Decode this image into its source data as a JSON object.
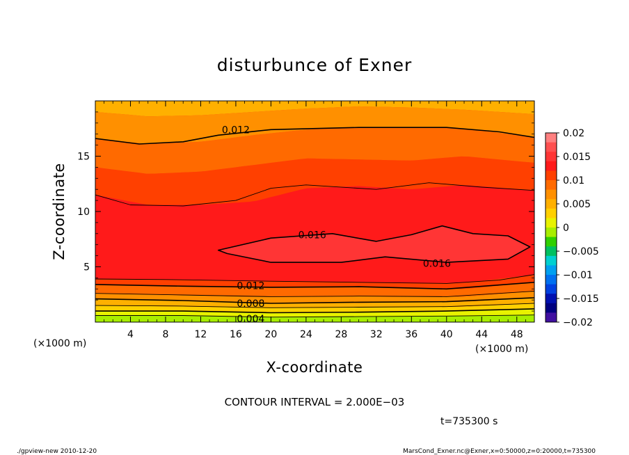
{
  "chart_data": {
    "type": "heatmap",
    "title": "disturbunce of Exner",
    "xlabel": "X-coordinate",
    "ylabel": "Z-coordinate",
    "x_unit": "(×1000 m)",
    "y_unit": "(×1000 m)",
    "xlim": [
      0,
      50
    ],
    "ylim": [
      0,
      20
    ],
    "x_ticks": [
      "4",
      "8",
      "12",
      "16",
      "20",
      "24",
      "28",
      "32",
      "36",
      "40",
      "44",
      "48"
    ],
    "y_ticks": [
      "5",
      "10",
      "15"
    ],
    "x_tick_values": [
      4,
      8,
      12,
      16,
      20,
      24,
      28,
      32,
      36,
      40,
      44,
      48
    ],
    "y_tick_values": [
      5,
      10,
      15
    ],
    "colorbar": {
      "labels": [
        "0.02",
        "0.015",
        "0.01",
        "0.005",
        "0",
        "−0.005",
        "−0.01",
        "−0.015",
        "−0.02"
      ],
      "values": [
        0.02,
        0.015,
        0.01,
        0.005,
        0,
        -0.005,
        -0.01,
        -0.015,
        -0.02
      ]
    },
    "contour_interval": "CONTOUR INTERVAL = 2.000E−03",
    "contour_labels": [
      {
        "text": "0.012",
        "x": 16.0,
        "y": 17.4
      },
      {
        "text": "0.016",
        "x": 24.7,
        "y": 7.9
      },
      {
        "text": "0.016",
        "x": 38.9,
        "y": 5.3
      },
      {
        "text": "0.012",
        "x": 17.7,
        "y": 3.3
      },
      {
        "text": "0.008",
        "x": 17.7,
        "y": 1.7
      },
      {
        "text": "0.004",
        "x": 17.7,
        "y": 0.3
      }
    ],
    "contour_lines": [
      {
        "level": 0.002,
        "points": [
          [
            0,
            0.6
          ],
          [
            10,
            0.6
          ],
          [
            20,
            0.45
          ],
          [
            30,
            0.5
          ],
          [
            40,
            0.55
          ],
          [
            50,
            0.65
          ]
        ]
      },
      {
        "level": 0.004,
        "points": [
          [
            0,
            1.0
          ],
          [
            10,
            1.0
          ],
          [
            20,
            0.85
          ],
          [
            30,
            0.9
          ],
          [
            40,
            1.0
          ],
          [
            50,
            1.2
          ]
        ]
      },
      {
        "level": 0.006,
        "points": [
          [
            0,
            1.5
          ],
          [
            10,
            1.45
          ],
          [
            20,
            1.3
          ],
          [
            30,
            1.35
          ],
          [
            40,
            1.4
          ],
          [
            50,
            1.7
          ]
        ]
      },
      {
        "level": 0.008,
        "points": [
          [
            0,
            2.1
          ],
          [
            10,
            1.95
          ],
          [
            20,
            1.7
          ],
          [
            30,
            1.8
          ],
          [
            40,
            1.85
          ],
          [
            50,
            2.2
          ]
        ]
      },
      {
        "level": 0.01,
        "points": [
          [
            0,
            2.6
          ],
          [
            10,
            2.45
          ],
          [
            20,
            2.3
          ],
          [
            30,
            2.35
          ],
          [
            40,
            2.3
          ],
          [
            50,
            2.8
          ]
        ]
      },
      {
        "level": 0.012,
        "points": [
          [
            0,
            3.4
          ],
          [
            10,
            3.25
          ],
          [
            20,
            3.15
          ],
          [
            30,
            3.2
          ],
          [
            40,
            3.0
          ],
          [
            50,
            3.6
          ]
        ]
      },
      {
        "level": 0.014,
        "points": [
          [
            0,
            3.9
          ],
          [
            8,
            3.85
          ],
          [
            20,
            3.7
          ],
          [
            30,
            3.6
          ],
          [
            40,
            3.5
          ],
          [
            46,
            3.8
          ],
          [
            50,
            4.3
          ]
        ]
      },
      {
        "level": 0.014,
        "points": [
          [
            0,
            11.5
          ],
          [
            4,
            10.6
          ],
          [
            10,
            10.5
          ],
          [
            16,
            11.0
          ],
          [
            20,
            12.1
          ],
          [
            24,
            12.4
          ],
          [
            32,
            12.0
          ],
          [
            38,
            12.6
          ],
          [
            44,
            12.2
          ],
          [
            50,
            11.9
          ]
        ]
      },
      {
        "level": 0.012,
        "points": [
          [
            0,
            16.6
          ],
          [
            5,
            16.1
          ],
          [
            10,
            16.3
          ],
          [
            14,
            16.9
          ],
          [
            20,
            17.4
          ],
          [
            30,
            17.6
          ],
          [
            40,
            17.6
          ],
          [
            46,
            17.2
          ],
          [
            50,
            16.7
          ]
        ]
      },
      {
        "level": 0.016,
        "closed": true,
        "points": [
          [
            14,
            6.5
          ],
          [
            20,
            7.6
          ],
          [
            27,
            8.0
          ],
          [
            32,
            7.3
          ],
          [
            36,
            7.9
          ],
          [
            39.5,
            8.7
          ],
          [
            43,
            8.0
          ],
          [
            47,
            7.8
          ],
          [
            49.5,
            6.8
          ],
          [
            47,
            5.7
          ],
          [
            40,
            5.4
          ],
          [
            33,
            5.9
          ],
          [
            28,
            5.4
          ],
          [
            20,
            5.4
          ],
          [
            15,
            6.2
          ]
        ]
      }
    ],
    "colors": {
      "0.020": "#ff8080",
      "0.018": "#ff5050",
      "0.016": "#ff3535",
      "0.014": "#ff1a1a",
      "0.012": "#ff4000",
      "0.010": "#ff6a00",
      "0.008": "#ff9000",
      "0.006": "#ffb000",
      "0.004": "#ffd000",
      "0.002": "#e8f200",
      "0.000": "#a8ee00",
      "-0.002": "#30d000",
      "-0.004": "#00c060",
      "-0.006": "#00d0d0",
      "-0.008": "#00a0f0",
      "-0.010": "#0070f0",
      "-0.012": "#0040e0",
      "-0.014": "#0010b0",
      "-0.016": "#000080",
      "-0.018": "#4010a0",
      "-0.020": "#6a0aa0"
    }
  },
  "footer": {
    "time": "t=735300 s",
    "left": "./gpview-new   2010-12-20",
    "right": "MarsCond_Exner.nc@Exner,x=0:50000,z=0:20000,t=735300"
  }
}
